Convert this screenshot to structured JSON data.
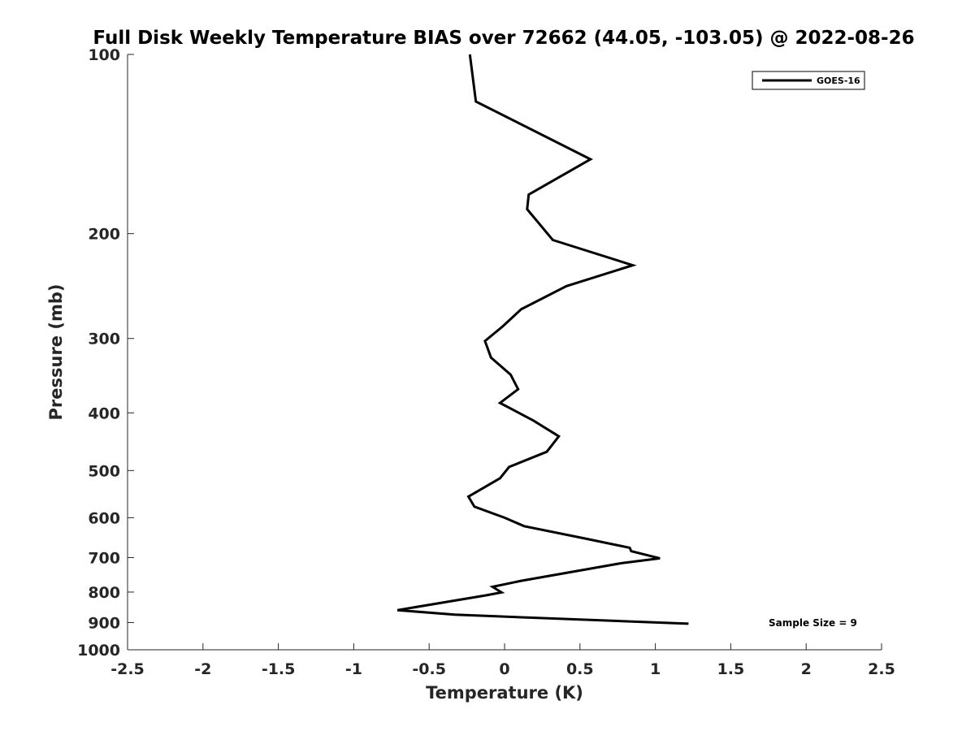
{
  "chart_data": {
    "type": "line",
    "title": "Full Disk Weekly Temperature BIAS over 72662 (44.05, -103.05) @ 2022-08-26",
    "xlabel": "Temperature (K)",
    "ylabel": "Pressure (mb)",
    "xlim": [
      -2.5,
      2.5
    ],
    "ylim": [
      100,
      1000
    ],
    "y_scale": "log",
    "y_reversed": true,
    "grid": false,
    "legend_position": "top-right",
    "x_ticks": [
      -2.5,
      -2,
      -1.5,
      -1,
      -0.5,
      0,
      0.5,
      1,
      1.5,
      2,
      2.5
    ],
    "x_tick_labels": [
      "-2.5",
      "-2",
      "-1.5",
      "-1",
      "-0.5",
      "0",
      "0.5",
      "1",
      "1.5",
      "2",
      "2.5"
    ],
    "y_ticks": [
      100,
      200,
      300,
      400,
      500,
      600,
      700,
      800,
      900,
      1000
    ],
    "y_tick_labels": [
      "100",
      "200",
      "300",
      "400",
      "500",
      "600",
      "700",
      "800",
      "900",
      "1000"
    ],
    "series": [
      {
        "name": "GOES-16",
        "color": "#000000",
        "x": [
          -0.23,
          -0.19,
          0.57,
          0.16,
          0.15,
          0.32,
          0.85,
          0.41,
          0.11,
          -0.01,
          -0.13,
          -0.09,
          0.04,
          0.09,
          -0.03,
          0.19,
          0.36,
          0.28,
          0.03,
          -0.03,
          -0.24,
          -0.2,
          0.0,
          0.13,
          0.53,
          0.83,
          0.84,
          1.03,
          0.78,
          0.11,
          -0.08,
          -0.02,
          -0.12,
          -0.71,
          -0.33,
          1.22
        ],
        "y": [
          100,
          120,
          150,
          172,
          182,
          205,
          226,
          245,
          268,
          286,
          303,
          323,
          345,
          365,
          385,
          412,
          438,
          465,
          493,
          515,
          553,
          575,
          600,
          620,
          650,
          674,
          683,
          702,
          715,
          766,
          784,
          801,
          810,
          858,
          873,
          904
        ]
      }
    ],
    "annotations": [
      {
        "text": "Sample Size = 9"
      }
    ]
  }
}
